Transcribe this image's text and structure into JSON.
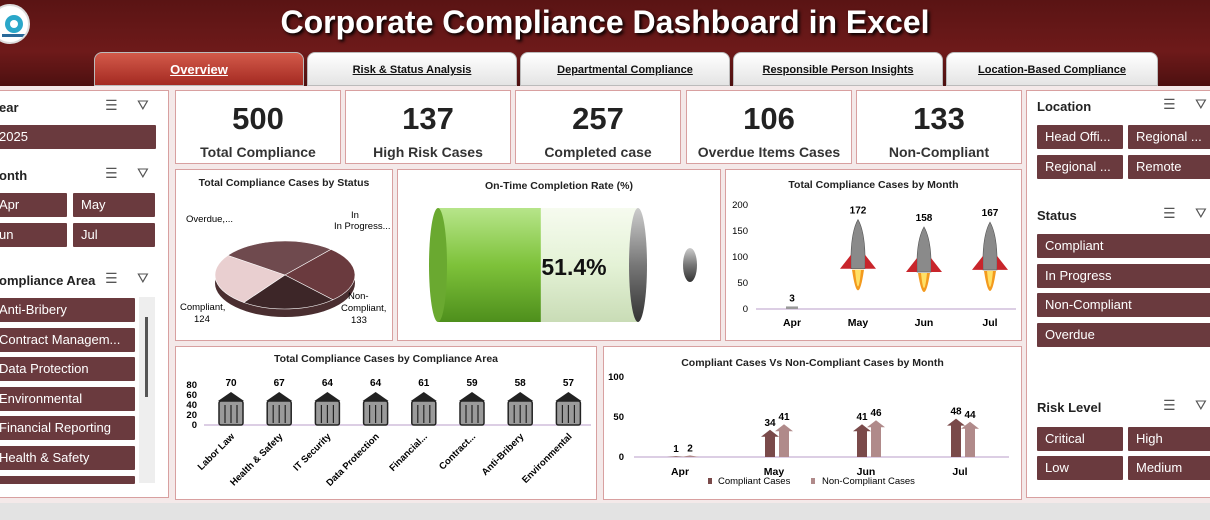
{
  "header": {
    "title": "Corporate Compliance Dashboard in Excel"
  },
  "tabs": [
    {
      "label": "Overview"
    },
    {
      "label": "Risk & Status Analysis"
    },
    {
      "label": "Departmental Compliance"
    },
    {
      "label": "Responsible Person Insights"
    },
    {
      "label": "Location-Based Compliance"
    }
  ],
  "kpis": [
    {
      "value": "500",
      "label": "Total Compliance"
    },
    {
      "value": "137",
      "label": "High Risk Cases"
    },
    {
      "value": "257",
      "label": "Completed case"
    },
    {
      "value": "106",
      "label": "Overdue Items Cases"
    },
    {
      "value": "133",
      "label": "Non-Compliant"
    }
  ],
  "left_slicers": {
    "year": {
      "title": "ear",
      "items": [
        "2025"
      ]
    },
    "month": {
      "title": "onth",
      "items": [
        "Apr",
        "May",
        "un",
        "Jul"
      ]
    },
    "area": {
      "title": "ompliance Area",
      "items": [
        "Anti-Bribery",
        "Contract Managem...",
        "Data Protection",
        "Environmental",
        "Financial Reporting",
        "Health & Safety"
      ]
    }
  },
  "right_slicers": {
    "location": {
      "title": "Location",
      "items": [
        "Head Offi...",
        "Regional ...",
        "Regional ...",
        "Remote"
      ]
    },
    "status": {
      "title": "Status",
      "items": [
        "Compliant",
        "In Progress",
        "Non-Compliant",
        "Overdue"
      ]
    },
    "risk": {
      "title": "Risk Level",
      "items": [
        "Critical",
        "High",
        "Low",
        "Medium"
      ]
    }
  },
  "icons": {
    "multiselect": "multi-select-icon",
    "clear_filter": "clear-filter-icon"
  },
  "colors": {
    "header": "#6e1a1a",
    "slicer_button": "#6a3a3e",
    "accent_green": "#7ec23a",
    "series_compliant": "#7a4a4a",
    "series_noncompliant": "#b08a8a"
  },
  "chart_data": [
    {
      "type": "pie",
      "title": "Total Compliance Cases by Status",
      "slices": [
        {
          "label": "Compliant,",
          "value": 124
        },
        {
          "label": "Non-Compliant,",
          "value": 133
        },
        {
          "label": "In Progress...",
          "value": 133
        },
        {
          "label": "Overdue,...",
          "value": 110
        }
      ],
      "labels": {
        "compliant": "Compliant,",
        "compliant_val": "124",
        "noncompliant": "Non-Compliant,",
        "noncompliant_val": "133",
        "inprogress": "In Progress...",
        "overdue": "Overdue,..."
      }
    },
    {
      "type": "gauge",
      "title": "On-Time Completion Rate (%)",
      "value": 51.4,
      "value_label": "51.4%"
    },
    {
      "type": "bar",
      "title": "Total Compliance Cases by Month",
      "categories": [
        "Apr",
        "May",
        "Jun",
        "Jul"
      ],
      "values": [
        3,
        172,
        158,
        167
      ],
      "value_labels": [
        "3",
        "172",
        "158",
        "167"
      ],
      "ylim": [
        0,
        200
      ],
      "yticks": [
        "200",
        "150",
        "100",
        "50",
        "0"
      ]
    },
    {
      "type": "bar",
      "title": "Total Compliance Cases by Compliance Area",
      "categories": [
        "Labor Law",
        "Health & Safety",
        "IT Security",
        "Data Protection",
        "Financial...",
        "Contract...",
        "Anti-Bribery",
        "Environmental"
      ],
      "values": [
        70,
        67,
        64,
        64,
        61,
        59,
        58,
        57
      ],
      "value_labels": [
        "70",
        "67",
        "64",
        "64",
        "61",
        "59",
        "58",
        "57"
      ],
      "ylim": [
        0,
        80
      ],
      "yticks": [
        "80",
        "60",
        "40",
        "20",
        "0"
      ]
    },
    {
      "type": "bar",
      "title": "Compliant Cases Vs Non-Compliant Cases by Month",
      "categories": [
        "Apr",
        "May",
        "Jun",
        "Jul"
      ],
      "series": [
        {
          "name": "Compliant Cases",
          "values": [
            1,
            34,
            41,
            48
          ],
          "labels": [
            "1",
            "34",
            "41",
            "48"
          ]
        },
        {
          "name": "Non-Compliant Cases",
          "values": [
            2,
            41,
            46,
            44
          ],
          "labels": [
            "2",
            "41",
            "46",
            "44"
          ]
        }
      ],
      "ylim": [
        0,
        100
      ],
      "yticks": [
        "100",
        "50",
        "0"
      ]
    }
  ]
}
